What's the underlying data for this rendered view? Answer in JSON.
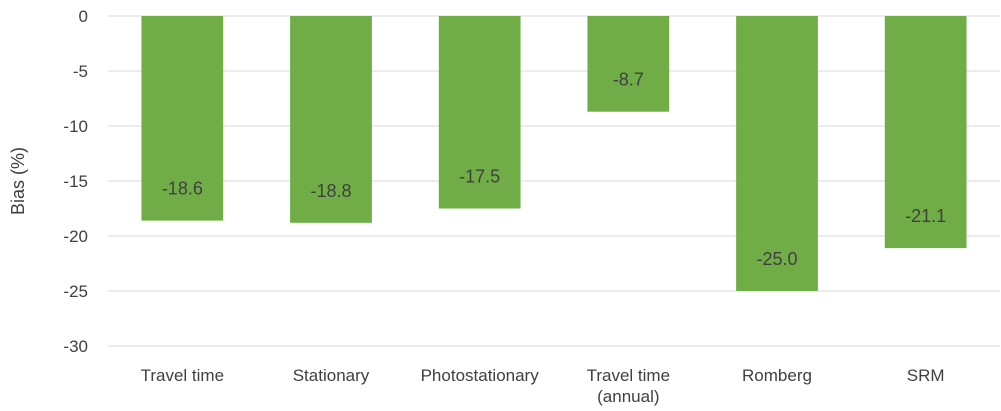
{
  "chart_data": {
    "type": "bar",
    "categories": [
      [
        "Travel time"
      ],
      [
        "Stationary"
      ],
      [
        "Photostationary"
      ],
      [
        "Travel time",
        "(annual)"
      ],
      [
        "Romberg"
      ],
      [
        "SRM"
      ]
    ],
    "values": [
      -18.6,
      -18.8,
      -17.5,
      -8.7,
      -25.0,
      -21.1
    ],
    "data_labels": [
      "-18.6",
      "-18.8",
      "-17.5",
      "-8.7",
      "-25.0",
      "-21.1"
    ],
    "title": "",
    "xlabel": "",
    "ylabel": "Bias (%)",
    "ylim": [
      -30,
      0
    ],
    "yticks": [
      0,
      -5,
      -10,
      -15,
      -20,
      -25,
      -30
    ],
    "grid": true,
    "legend": "none",
    "bar_color": "#70ad47",
    "grid_color": "#d9d9d9",
    "text_color": "#404040"
  }
}
